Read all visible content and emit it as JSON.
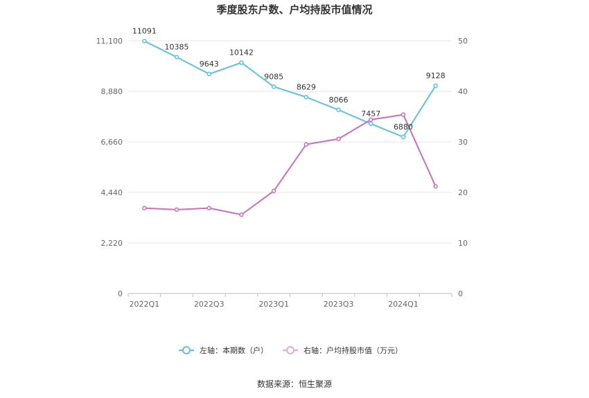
{
  "chart_data": {
    "type": "line",
    "title": "季度股东户数、户均持股市值情况",
    "categories": [
      "2022Q1",
      "2022Q2",
      "2022Q3",
      "2022Q4",
      "2023Q1",
      "2023Q2",
      "2023Q3",
      "2023Q4",
      "2024Q1",
      "2024Q2"
    ],
    "x_tick_labels": [
      "2022Q1",
      "2022Q3",
      "2023Q1",
      "2023Q3",
      "2024Q1"
    ],
    "left_axis": {
      "min": 0,
      "max": 11100,
      "ticks": [
        "0",
        "2,220",
        "4,440",
        "6,660",
        "8,880",
        "11,100"
      ]
    },
    "right_axis": {
      "min": 0,
      "max": 50,
      "ticks": [
        "0",
        "10",
        "20",
        "30",
        "40",
        "50"
      ]
    },
    "grid": true,
    "legend_position": "bottom",
    "series": [
      {
        "name": "左轴：本期数（户）",
        "axis": "left",
        "color": "#5bc0eb",
        "values": [
          11091,
          10385,
          9643,
          10142,
          9085,
          8629,
          8066,
          7457,
          6880,
          9128
        ],
        "labels": [
          "11091",
          "10385",
          "9643",
          "10142",
          "9085",
          "8629",
          "8066",
          "7457",
          "6880",
          "9128"
        ]
      },
      {
        "name": "右轴：户均持股市值（万元）",
        "axis": "right",
        "color": "#d26cb4",
        "values": [
          16.9,
          16.6,
          16.9,
          15.6,
          20.3,
          29.5,
          30.6,
          34.4,
          35.4,
          21.2
        ]
      }
    ],
    "source": "数据来源：恒生聚源"
  }
}
